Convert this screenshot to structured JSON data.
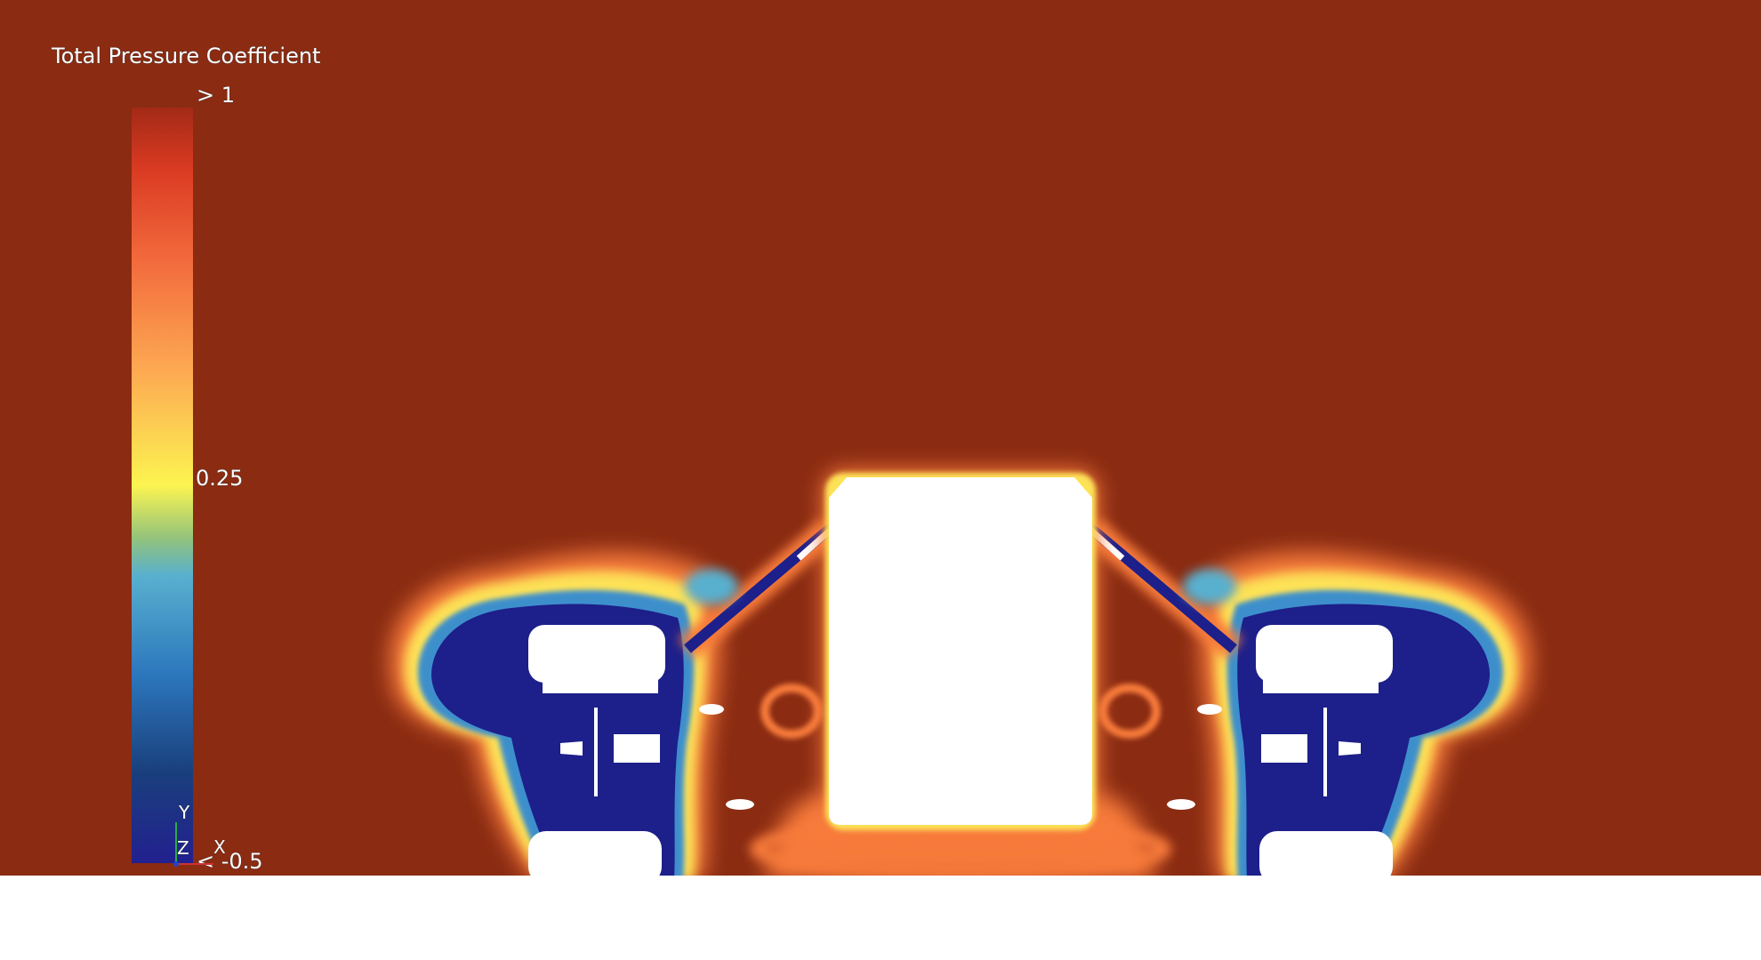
{
  "legend": {
    "title": "Total Pressure Coefficient",
    "max_label": "> 1",
    "mid_label": "0.25",
    "min_label": "< -0.5"
  },
  "axes_triad": {
    "y": "Y",
    "z": "Z",
    "x": "X"
  }
}
